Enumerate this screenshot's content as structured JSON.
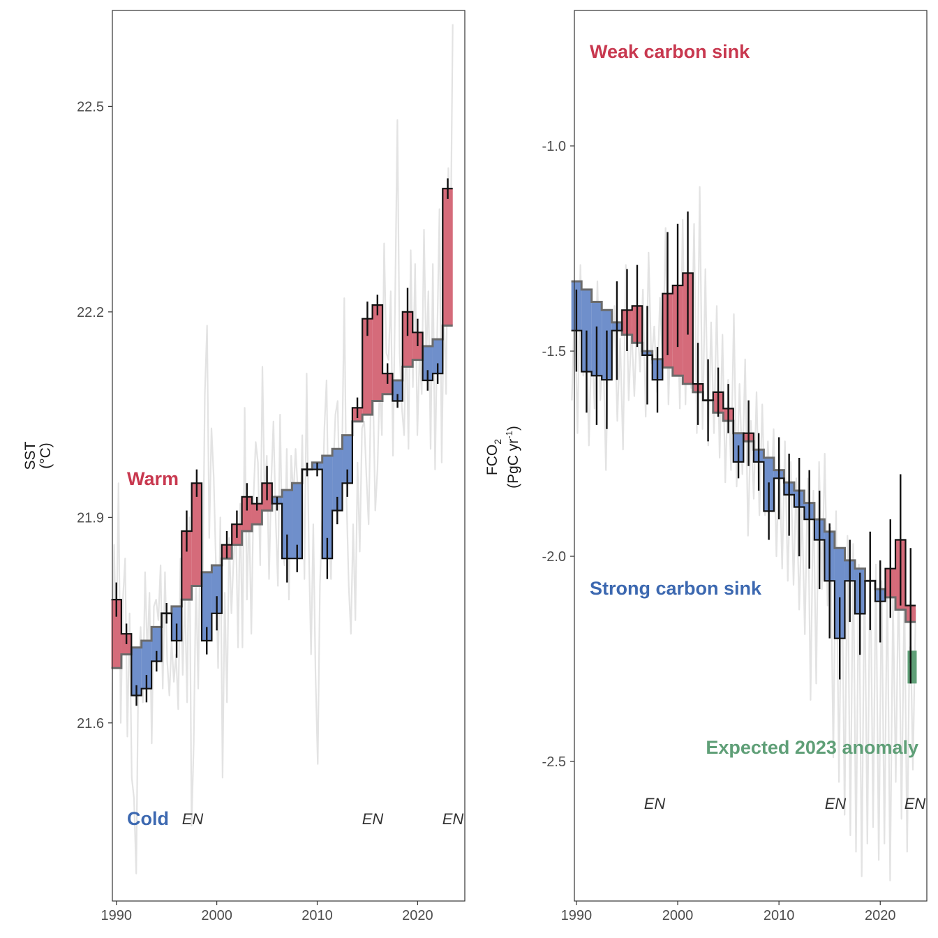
{
  "colors": {
    "warm": "#d56b7a",
    "cold": "#6f8fcb",
    "warm_text": "#c8384f",
    "cold_text": "#3c68b0",
    "expected": "#5f9f77",
    "monthly_line": "#e3e3e3",
    "baseline": "#6b6b6b",
    "step": "#111111"
  },
  "chart_data": [
    {
      "type": "step",
      "panel": "sst",
      "ylabel": "SST",
      "ylabel_unit": "(°C)",
      "xlim": [
        1989.6,
        2024.7
      ],
      "ylim": [
        21.34,
        22.64
      ],
      "xticks": [
        1990,
        2000,
        2010,
        2020
      ],
      "yticks": [
        21.6,
        21.9,
        22.2,
        22.5
      ],
      "yticks_labels": [
        "21.6",
        "21.9",
        "22.2",
        "22.5"
      ],
      "years": [
        1990,
        1991,
        1992,
        1993,
        1994,
        1995,
        1996,
        1997,
        1998,
        1999,
        2000,
        2001,
        2002,
        2003,
        2004,
        2005,
        2006,
        2007,
        2008,
        2009,
        2010,
        2011,
        2012,
        2013,
        2014,
        2015,
        2016,
        2017,
        2018,
        2019,
        2020,
        2021,
        2022,
        2023
      ],
      "annual": [
        21.78,
        21.73,
        21.64,
        21.65,
        21.69,
        21.76,
        21.72,
        21.88,
        21.95,
        21.72,
        21.76,
        21.86,
        21.89,
        21.93,
        21.92,
        21.95,
        21.92,
        21.84,
        21.84,
        21.97,
        21.97,
        21.84,
        21.91,
        21.95,
        22.06,
        22.19,
        22.21,
        22.11,
        22.07,
        22.2,
        22.17,
        22.1,
        22.11,
        22.38
      ],
      "baseline": [
        21.68,
        21.7,
        21.71,
        21.72,
        21.74,
        21.76,
        21.77,
        21.78,
        21.8,
        21.82,
        21.83,
        21.84,
        21.86,
        21.88,
        21.89,
        21.91,
        21.93,
        21.94,
        21.95,
        21.97,
        21.98,
        21.99,
        22.0,
        22.02,
        22.04,
        22.05,
        22.07,
        22.08,
        22.1,
        22.12,
        22.13,
        22.15,
        22.16,
        22.18
      ],
      "error": [
        0.025,
        0.015,
        0.015,
        0.02,
        0.015,
        0.015,
        0.025,
        0.03,
        0.02,
        0.02,
        0.025,
        0.02,
        0.02,
        0.02,
        0.01,
        0.025,
        0.01,
        0.035,
        0.02,
        0.01,
        0.01,
        0.03,
        0.02,
        0.02,
        0.015,
        0.025,
        0.015,
        0.015,
        0.01,
        0.035,
        0.02,
        0.015,
        0.015,
        0.015
      ],
      "monthly": [
        21.6,
        21.86,
        21.7,
        21.95,
        21.6,
        21.78,
        21.84,
        21.58,
        21.76,
        21.52,
        21.49,
        21.38,
        21.68,
        21.74,
        21.63,
        21.82,
        21.7,
        21.79,
        21.57,
        21.77,
        21.78,
        21.75,
        21.83,
        21.65,
        21.82,
        21.69,
        21.64,
        21.72,
        21.66,
        21.7,
        21.62,
        21.84,
        21.67,
        21.79,
        21.63,
        21.9,
        21.45,
        21.57,
        21.81,
        21.65,
        21.9,
        21.78,
        22.08,
        22.18,
        21.87,
        22.03,
        21.96,
        21.83,
        21.68,
        21.9,
        21.52,
        21.79,
        21.63,
        21.87,
        21.76,
        21.84,
        21.89,
        21.71,
        21.92,
        21.71,
        22.06,
        21.78,
        21.91,
        21.73,
        21.93,
        22.01,
        21.98,
        21.83,
        22.12,
        21.93,
        21.99,
        21.81,
        21.95,
        22.04,
        21.9,
        21.8,
        22.05,
        21.86,
        21.83,
        22.0,
        21.78,
        21.99,
        21.93,
        22.0,
        21.94,
        21.88,
        22.02,
        21.81,
        22.11,
        21.85,
        21.7,
        21.89,
        21.67,
        21.54,
        21.8,
        21.9,
        22.03,
        22.1,
        21.88,
        21.81,
        21.97,
        22.05,
        22.07,
        21.91,
        21.99,
        22.22,
        21.93,
        21.8,
        21.73,
        21.89,
        21.75,
        21.98,
        21.85,
        22.03,
        22.04,
        21.96,
        21.89,
        22.08,
        22.08,
        21.91,
        21.97,
        22.1,
        22.02,
        22.3,
        22.14,
        22.13,
        22.23,
        21.99,
        22.23,
        22.48,
        22.14,
        22.06,
        22.02,
        22.17,
        22.0,
        22.29,
        22.09,
        22.27,
        22.02,
        22.14,
        22.08,
        22.32,
        22.13,
        22.23,
        22.0,
        22.27,
        21.97,
        22.17,
        22.35,
        21.98,
        22.21,
        22.08,
        22.41,
        22.29,
        22.62
      ]
    },
    {
      "type": "step",
      "panel": "fco2",
      "ylabel": "FCO₂",
      "ylabel_unit": "(PgC yr⁻¹)",
      "xlim": [
        1989.8,
        2024.6
      ],
      "ylim": [
        -2.84,
        -0.67
      ],
      "xticks": [
        1990,
        2000,
        2010,
        2020
      ],
      "yticks": [
        -2.5,
        -2.0,
        -1.5,
        -1.0
      ],
      "yticks_labels": [
        "-2.5",
        "-2.0",
        "-1.5",
        "-1.0"
      ],
      "years": [
        1990,
        1991,
        1992,
        1993,
        1994,
        1995,
        1996,
        1997,
        1998,
        1999,
        2000,
        2001,
        2002,
        2003,
        2004,
        2005,
        2006,
        2007,
        2008,
        2009,
        2010,
        2011,
        2012,
        2013,
        2014,
        2015,
        2016,
        2017,
        2018,
        2019,
        2020,
        2021,
        2022,
        2023
      ],
      "annual": [
        -1.45,
        -1.55,
        -1.56,
        -1.57,
        -1.45,
        -1.4,
        -1.39,
        -1.51,
        -1.57,
        -1.36,
        -1.34,
        -1.31,
        -1.58,
        -1.62,
        -1.6,
        -1.64,
        -1.77,
        -1.7,
        -1.77,
        -1.89,
        -1.81,
        -1.85,
        -1.88,
        -1.91,
        -1.96,
        -2.06,
        -2.2,
        -2.06,
        -2.14,
        -2.06,
        -2.11,
        -2.03,
        -1.96,
        -2.12
      ],
      "baseline": [
        -1.33,
        -1.35,
        -1.38,
        -1.4,
        -1.43,
        -1.46,
        -1.48,
        -1.5,
        -1.52,
        -1.54,
        -1.56,
        -1.58,
        -1.6,
        -1.62,
        -1.65,
        -1.67,
        -1.7,
        -1.72,
        -1.74,
        -1.76,
        -1.79,
        -1.82,
        -1.84,
        -1.87,
        -1.91,
        -1.94,
        -1.98,
        -2.01,
        -2.03,
        -2.06,
        -2.08,
        -2.1,
        -2.13,
        -2.16
      ],
      "error": [
        0.1,
        0.1,
        0.12,
        0.12,
        0.12,
        0.1,
        0.1,
        0.12,
        0.08,
        0.15,
        0.15,
        0.15,
        0.1,
        0.1,
        0.06,
        0.06,
        0.04,
        0.08,
        0.07,
        0.07,
        0.1,
        0.1,
        0.12,
        0.12,
        0.12,
        0.14,
        0.1,
        0.1,
        0.1,
        0.12,
        0.1,
        0.12,
        0.16,
        0.14
      ],
      "expected_2023": {
        "year": 2023,
        "low": -2.31,
        "high": -2.23
      },
      "monthly": [
        -1.62,
        -1.38,
        -1.7,
        -1.29,
        -1.56,
        -1.41,
        -1.73,
        -1.46,
        -1.64,
        -1.33,
        -1.62,
        -1.48,
        -1.79,
        -1.44,
        -1.57,
        -1.39,
        -1.67,
        -1.47,
        -1.74,
        -1.29,
        -1.62,
        -1.44,
        -1.61,
        -1.42,
        -1.55,
        -1.35,
        -1.66,
        -1.26,
        -1.53,
        -1.44,
        -1.6,
        -1.37,
        -1.54,
        -1.2,
        -1.63,
        -1.38,
        -1.55,
        -1.34,
        -1.64,
        -1.18,
        -1.63,
        -1.28,
        -1.59,
        -1.19,
        -1.7,
        -1.1,
        -1.69,
        -1.3,
        -1.73,
        -1.43,
        -1.7,
        -1.39,
        -1.76,
        -1.46,
        -1.82,
        -1.57,
        -1.79,
        -1.41,
        -1.83,
        -1.58,
        -1.8,
        -1.52,
        -1.95,
        -1.67,
        -1.86,
        -1.6,
        -1.9,
        -1.63,
        -1.9,
        -1.72,
        -1.88,
        -1.69,
        -2.0,
        -1.75,
        -2.03,
        -1.72,
        -2.06,
        -1.77,
        -2.07,
        -1.81,
        -2.13,
        -1.88,
        -2.19,
        -1.81,
        -2.35,
        -1.84,
        -2.31,
        -1.77,
        -2.08,
        -1.75,
        -2.12,
        -1.93,
        -2.49,
        -1.89,
        -2.55,
        -1.98,
        -2.63,
        -1.95,
        -2.68,
        -1.97,
        -2.72,
        -2.02,
        -2.78,
        -2.03,
        -2.7,
        -1.97,
        -2.66,
        -2.02,
        -2.74,
        -2.06,
        -2.7,
        -2.05,
        -2.79,
        -2.1,
        -2.55,
        -2.04,
        -2.64,
        -2.08,
        -2.72,
        -2.11,
        -2.52,
        -2.13
      ]
    }
  ],
  "sst_panel": {
    "ylabel_main": "SST",
    "ylabel_unit": "(°C)",
    "annotations": {
      "warm": "Warm",
      "cold": "Cold"
    },
    "en_labels": [
      "EN",
      "EN",
      "EN"
    ],
    "x_tick_labels": [
      "1990",
      "2000",
      "2010",
      "2020"
    ],
    "y_tick_labels": [
      "21.6",
      "21.9",
      "22.2",
      "22.5"
    ]
  },
  "fco2_panel": {
    "ylabel_main": "FCO",
    "ylabel_sub": "2",
    "ylabel_unit_pre": "(PgC yr",
    "ylabel_unit_sup": "-1",
    "ylabel_unit_post": ")",
    "annotations": {
      "weak": "Weak carbon sink",
      "strong": "Strong carbon sink",
      "expected": "Expected 2023 anomaly"
    },
    "en_labels": [
      "EN",
      "EN",
      "EN"
    ],
    "x_tick_labels": [
      "1990",
      "2000",
      "2010",
      "2020"
    ],
    "y_tick_labels": [
      "-2.5",
      "-2.0",
      "-1.5",
      "-1.0"
    ]
  }
}
